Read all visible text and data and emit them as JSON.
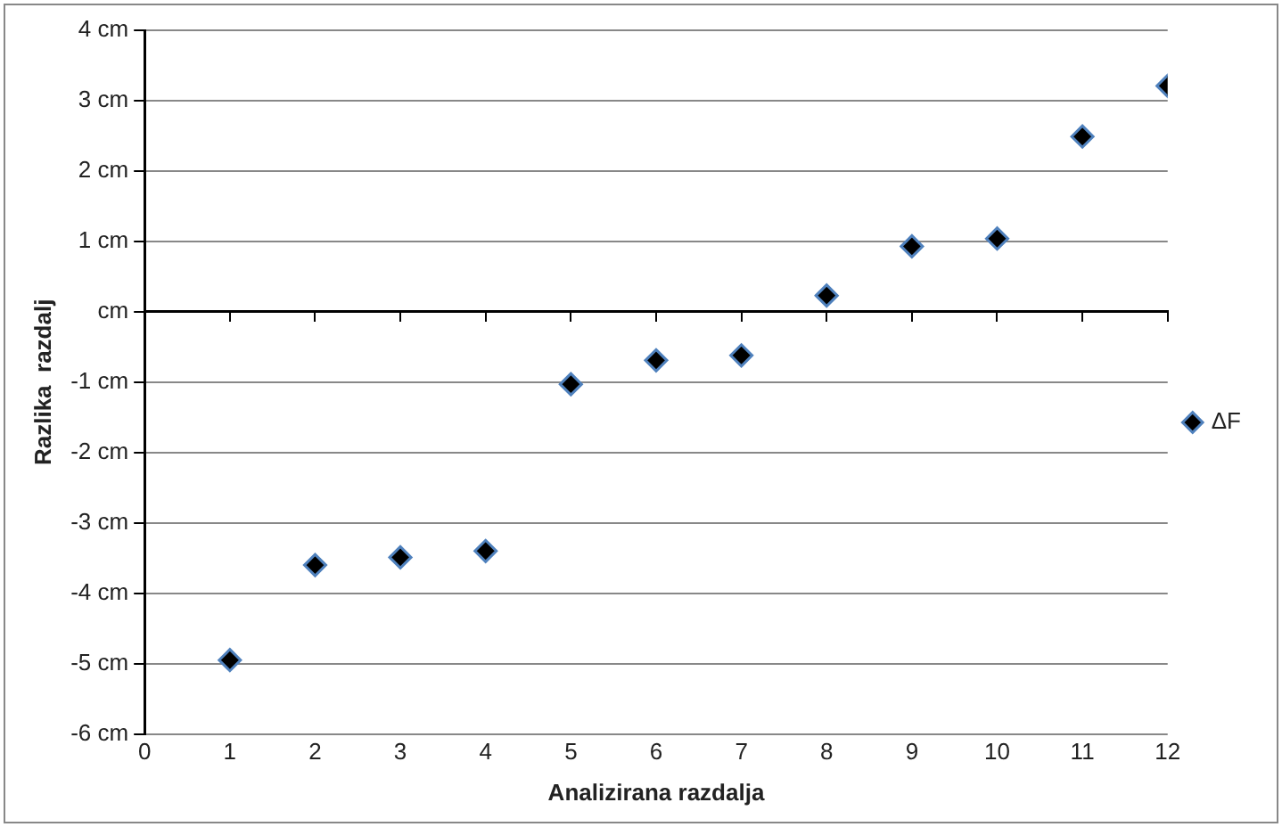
{
  "chart_data": {
    "type": "scatter",
    "xlabel": "Analizirana razdalja",
    "ylabel": "Razlika  razdalj",
    "x": [
      1,
      2,
      3,
      4,
      5,
      6,
      7,
      8,
      9,
      10,
      11,
      12
    ],
    "series": [
      {
        "name": "ΔF",
        "color": "#000000",
        "values": [
          -4.95,
          -3.6,
          -3.49,
          -3.4,
          -1.03,
          -0.69,
          -0.62,
          0.23,
          0.93,
          1.04,
          2.49,
          3.21
        ]
      }
    ],
    "xlim": [
      0,
      12
    ],
    "xticks": [
      0,
      1,
      2,
      3,
      4,
      5,
      6,
      7,
      8,
      9,
      10,
      11,
      12
    ],
    "ylim": [
      -6,
      4
    ],
    "yticks": [
      {
        "value": -6,
        "label": "-6 cm"
      },
      {
        "value": -5,
        "label": "-5 cm"
      },
      {
        "value": -4,
        "label": "-4 cm"
      },
      {
        "value": -3,
        "label": "-3 cm"
      },
      {
        "value": -2,
        "label": "-2 cm"
      },
      {
        "value": -1,
        "label": "-1 cm"
      },
      {
        "value": 0,
        "label": "cm"
      },
      {
        "value": 1,
        "label": "1 cm"
      },
      {
        "value": 2,
        "label": "2 cm"
      },
      {
        "value": 3,
        "label": "3 cm"
      },
      {
        "value": 4,
        "label": "4 cm"
      }
    ],
    "grid": "y",
    "legend": "right",
    "marker": "diamond"
  }
}
